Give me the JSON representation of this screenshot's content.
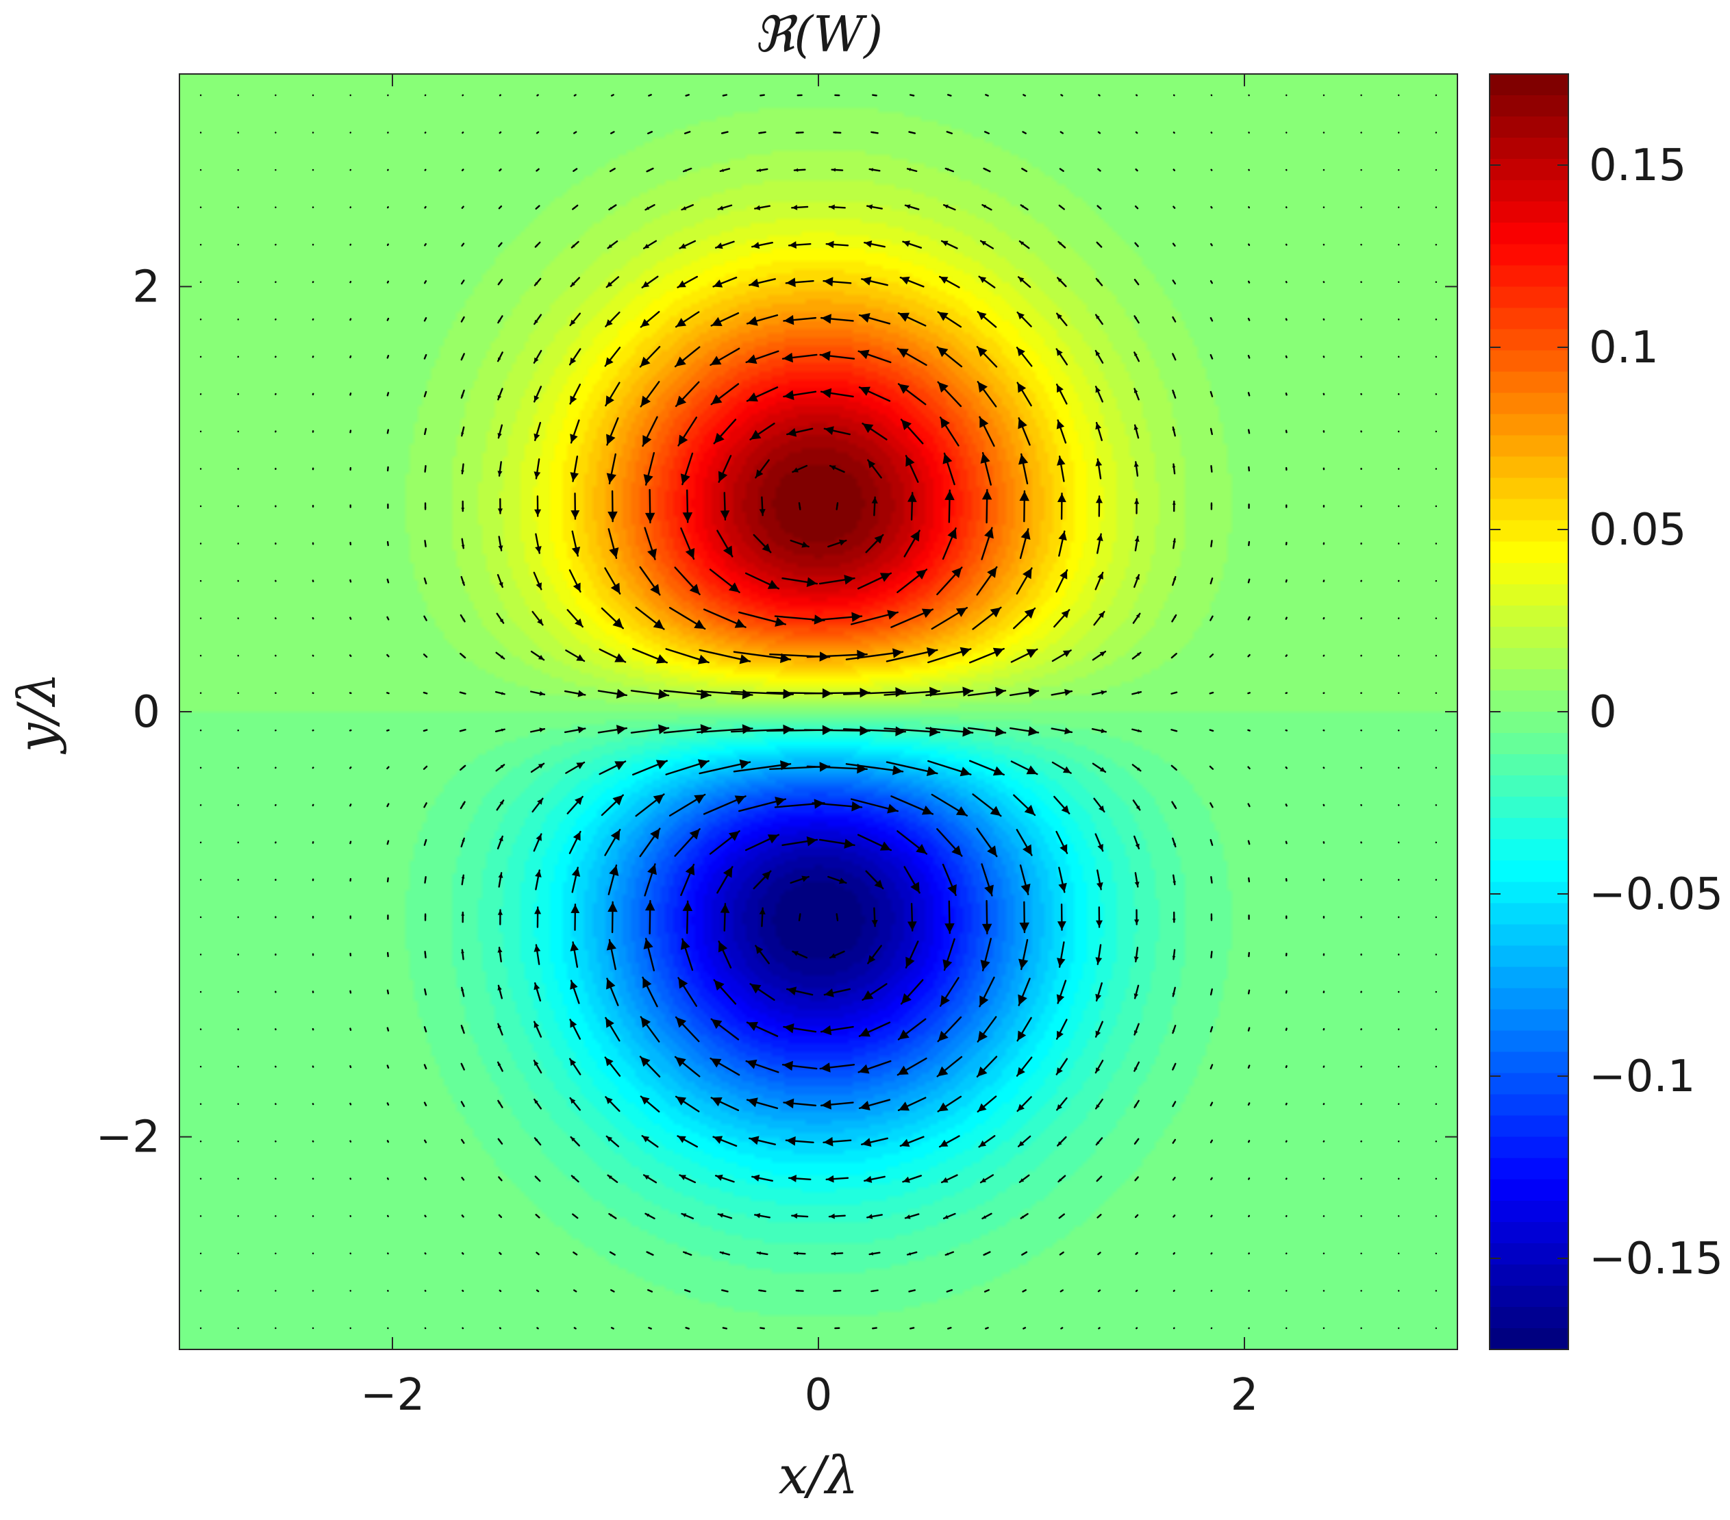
{
  "chart_data": {
    "type": "heatmap",
    "title": "ℜ(W)",
    "xlabel": "x/λ",
    "ylabel": "y/λ",
    "xlim": [
      -3,
      3
    ],
    "ylim": [
      -3,
      3
    ],
    "x_ticks": [
      {
        "value": -2,
        "label": "−2"
      },
      {
        "value": 0,
        "label": "0"
      },
      {
        "value": 2,
        "label": "2"
      }
    ],
    "y_ticks": [
      {
        "value": 2,
        "label": "2"
      },
      {
        "value": 0,
        "label": "0"
      },
      {
        "value": -2,
        "label": "−2"
      }
    ],
    "colorbar": {
      "colormap": "jet",
      "clim": [
        -0.175,
        0.175
      ],
      "ticks": [
        {
          "value": 0.15,
          "label": "0.15"
        },
        {
          "value": 0.1,
          "label": "0.1"
        },
        {
          "value": 0.05,
          "label": "0.05"
        },
        {
          "value": 0,
          "label": "0"
        },
        {
          "value": -0.05,
          "label": "−0.05"
        },
        {
          "value": -0.1,
          "label": "−0.1"
        },
        {
          "value": -0.15,
          "label": "−0.15"
        }
      ]
    },
    "field": {
      "description_model": "dipole: positive lobe centred at (0, 0.9), negative lobe centred at (0, -0.9)",
      "max": 0.175,
      "min": -0.175,
      "positive_center": [
        0,
        0.9
      ],
      "negative_center": [
        0,
        -0.9
      ]
    },
    "quiver": {
      "grid_x_range": [
        -2.9,
        2.9
      ],
      "grid_y_range": [
        -2.9,
        2.9
      ],
      "grid_count": 34,
      "color": "#000000"
    },
    "grid": false
  }
}
